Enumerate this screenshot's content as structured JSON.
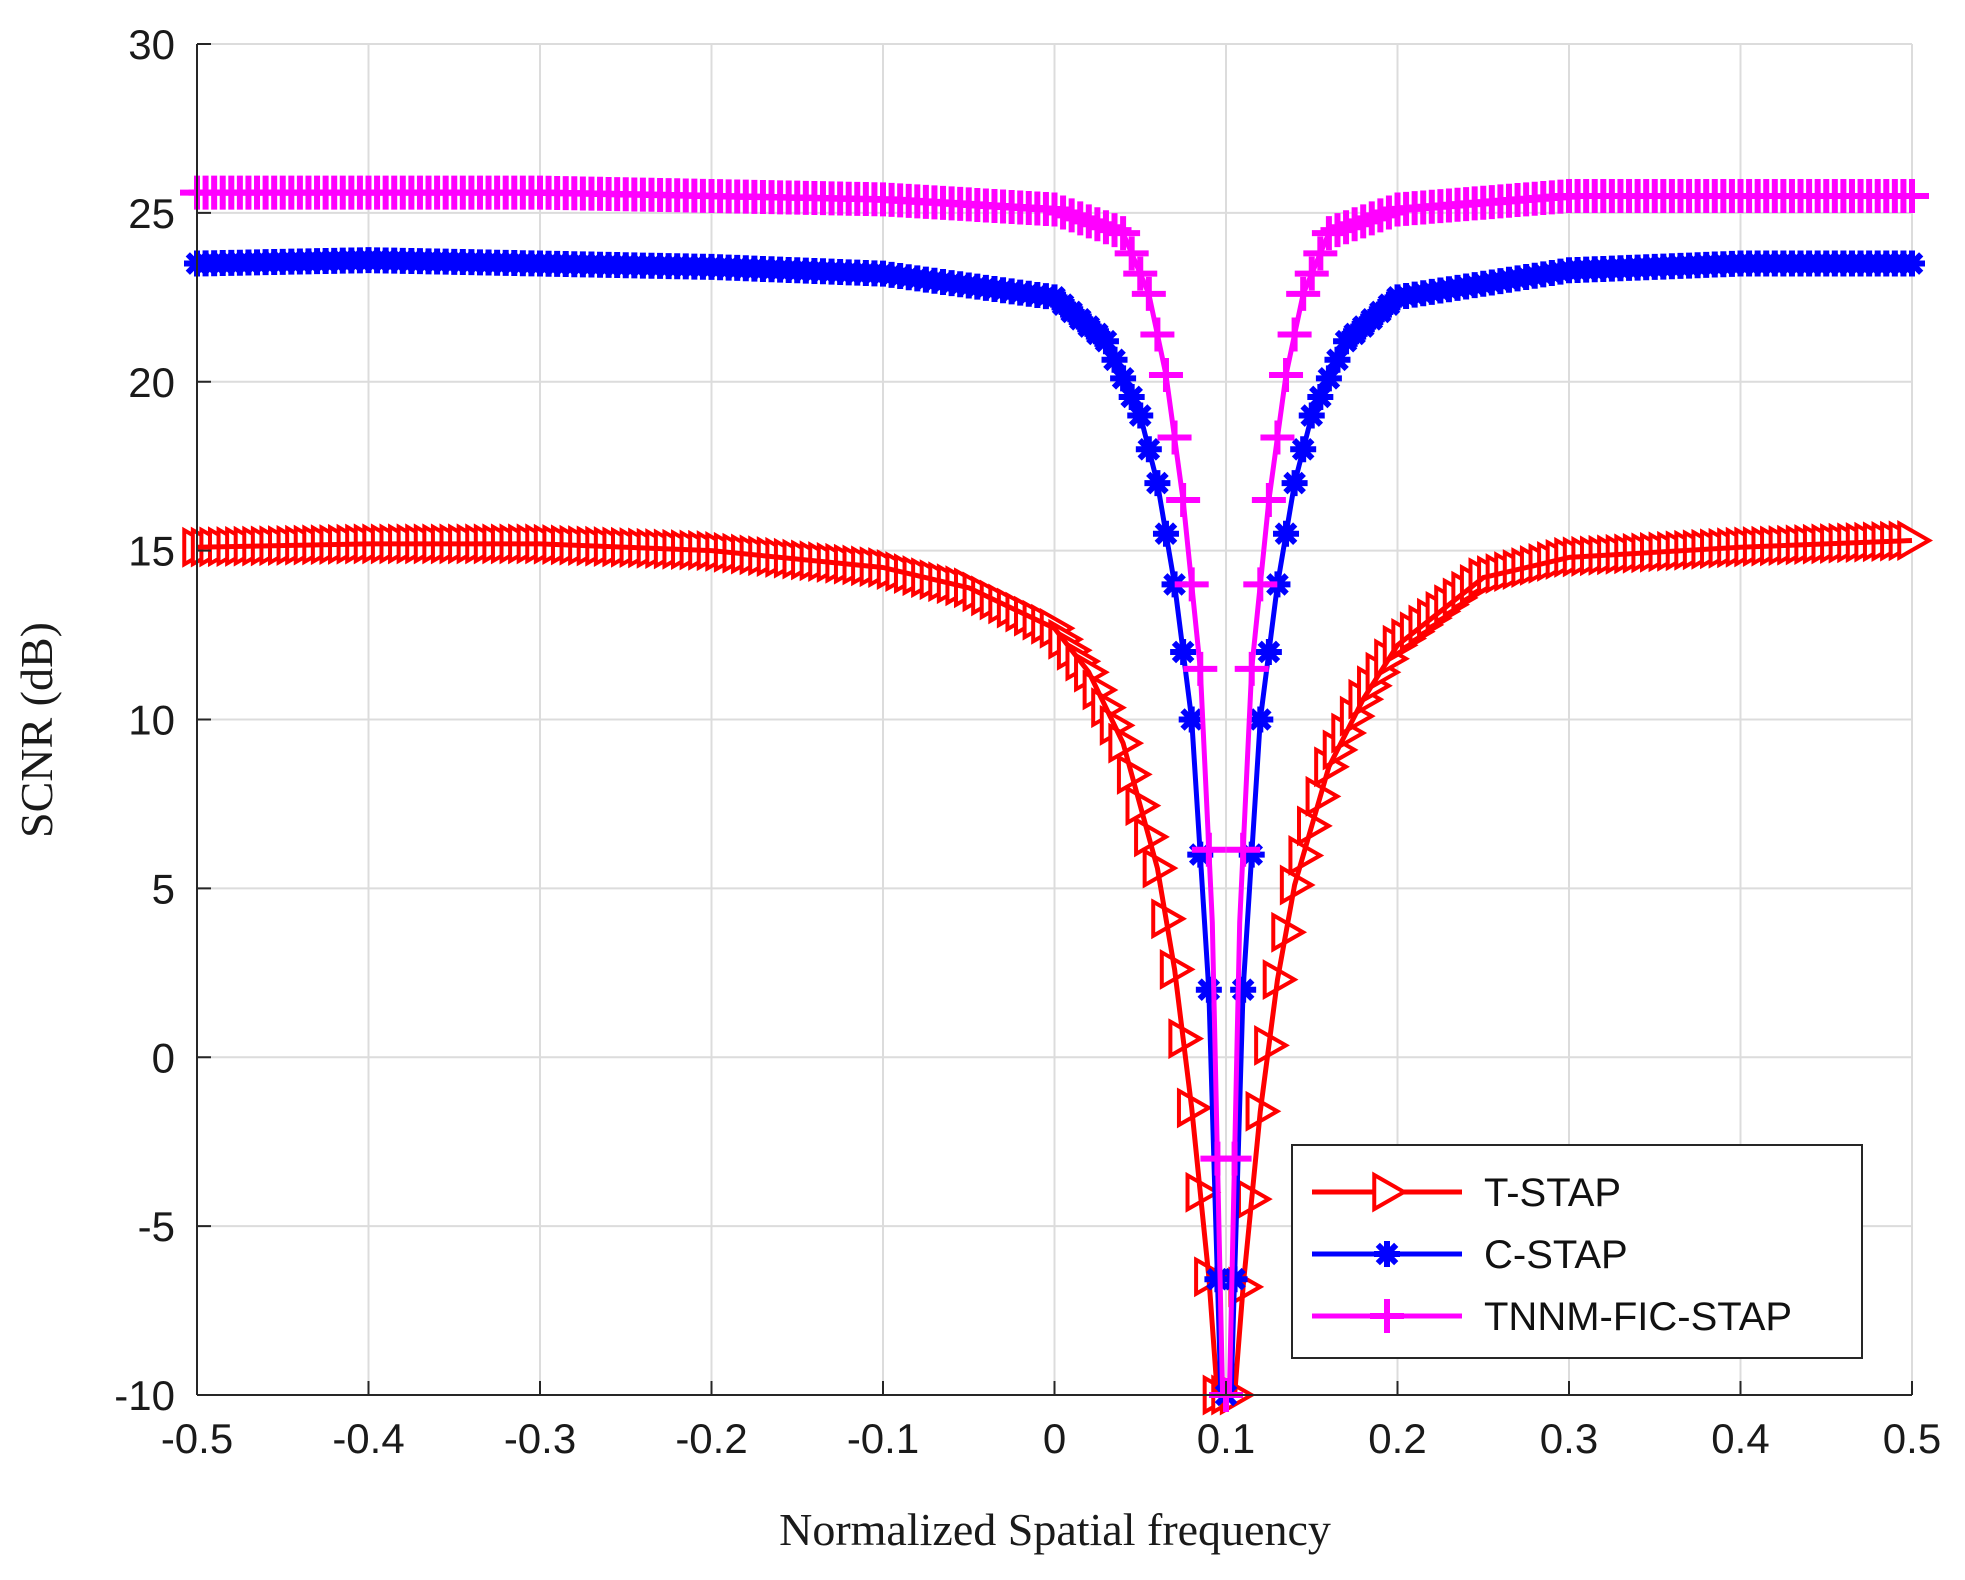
{
  "chart_data": {
    "type": "line",
    "title": "",
    "xlabel": "Normalized Spatial frequency",
    "ylabel": "SCNR (dB)",
    "xlim": [
      -0.5,
      0.5
    ],
    "ylim": [
      -10,
      30
    ],
    "xticks": [
      -0.5,
      -0.4,
      -0.3,
      -0.2,
      -0.1,
      0,
      0.1,
      0.2,
      0.3,
      0.4,
      0.5
    ],
    "xtick_labels": [
      "-0.5",
      "-0.4",
      "-0.3",
      "-0.2",
      "-0.1",
      "0",
      "0.1",
      "0.2",
      "0.3",
      "0.4",
      "0.5"
    ],
    "yticks": [
      -10,
      -5,
      0,
      5,
      10,
      15,
      20,
      25,
      30
    ],
    "ytick_labels": [
      "-10",
      "-5",
      "0",
      "5",
      "10",
      "15",
      "20",
      "25",
      "30"
    ],
    "grid": true,
    "legend_position": "bottom-right",
    "notch_frequency": 0.1,
    "series": [
      {
        "name": "T-STAP",
        "color": "#ff0000",
        "marker": "triangle-right",
        "plateau_db": 15.2,
        "notch_depth_db": -10,
        "points": [
          [
            -0.5,
            15.1
          ],
          [
            -0.4,
            15.2
          ],
          [
            -0.3,
            15.2
          ],
          [
            -0.2,
            15.0
          ],
          [
            -0.1,
            14.5
          ],
          [
            -0.05,
            13.9
          ],
          [
            0.0,
            12.7
          ],
          [
            0.02,
            11.4
          ],
          [
            0.04,
            9.3
          ],
          [
            0.06,
            5.6
          ],
          [
            0.07,
            2.6
          ],
          [
            0.08,
            -1.5
          ],
          [
            0.09,
            -6.5
          ],
          [
            0.095,
            -10
          ],
          [
            0.105,
            -10
          ],
          [
            0.11,
            -6.8
          ],
          [
            0.12,
            -1.6
          ],
          [
            0.13,
            2.3
          ],
          [
            0.14,
            5.1
          ],
          [
            0.16,
            8.6
          ],
          [
            0.18,
            10.6
          ],
          [
            0.2,
            12.2
          ],
          [
            0.25,
            14.2
          ],
          [
            0.3,
            14.8
          ],
          [
            0.4,
            15.1
          ],
          [
            0.5,
            15.3
          ]
        ]
      },
      {
        "name": "C-STAP",
        "color": "#0000ff",
        "marker": "asterisk",
        "plateau_db": 23.5,
        "notch_depth_db": -10,
        "points": [
          [
            -0.5,
            23.5
          ],
          [
            -0.4,
            23.6
          ],
          [
            -0.3,
            23.5
          ],
          [
            -0.2,
            23.4
          ],
          [
            -0.1,
            23.2
          ],
          [
            0.0,
            22.5
          ],
          [
            0.03,
            21.2
          ],
          [
            0.05,
            19.0
          ],
          [
            0.06,
            17.0
          ],
          [
            0.07,
            14.0
          ],
          [
            0.08,
            10.0
          ],
          [
            0.09,
            2.0
          ],
          [
            0.097,
            -10
          ],
          [
            0.103,
            -10
          ],
          [
            0.11,
            2.0
          ],
          [
            0.12,
            10.0
          ],
          [
            0.13,
            14.0
          ],
          [
            0.14,
            17.0
          ],
          [
            0.15,
            19.0
          ],
          [
            0.17,
            21.2
          ],
          [
            0.2,
            22.5
          ],
          [
            0.3,
            23.3
          ],
          [
            0.4,
            23.5
          ],
          [
            0.5,
            23.5
          ]
        ]
      },
      {
        "name": "TNNM-FIC-STAP",
        "color": "#ff00ff",
        "marker": "plus",
        "plateau_db": 25.5,
        "notch_depth_db": -10,
        "points": [
          [
            -0.5,
            25.6
          ],
          [
            -0.4,
            25.6
          ],
          [
            -0.3,
            25.6
          ],
          [
            -0.2,
            25.5
          ],
          [
            -0.1,
            25.4
          ],
          [
            0.0,
            25.1
          ],
          [
            0.04,
            24.4
          ],
          [
            0.055,
            22.6
          ],
          [
            0.065,
            20.2
          ],
          [
            0.075,
            16.5
          ],
          [
            0.085,
            11.5
          ],
          [
            0.092,
            4.0
          ],
          [
            0.098,
            -10
          ],
          [
            0.102,
            -10
          ],
          [
            0.108,
            4.0
          ],
          [
            0.115,
            11.5
          ],
          [
            0.125,
            16.5
          ],
          [
            0.135,
            20.2
          ],
          [
            0.145,
            22.6
          ],
          [
            0.16,
            24.4
          ],
          [
            0.2,
            25.1
          ],
          [
            0.3,
            25.5
          ],
          [
            0.4,
            25.5
          ],
          [
            0.5,
            25.5
          ]
        ]
      }
    ]
  }
}
